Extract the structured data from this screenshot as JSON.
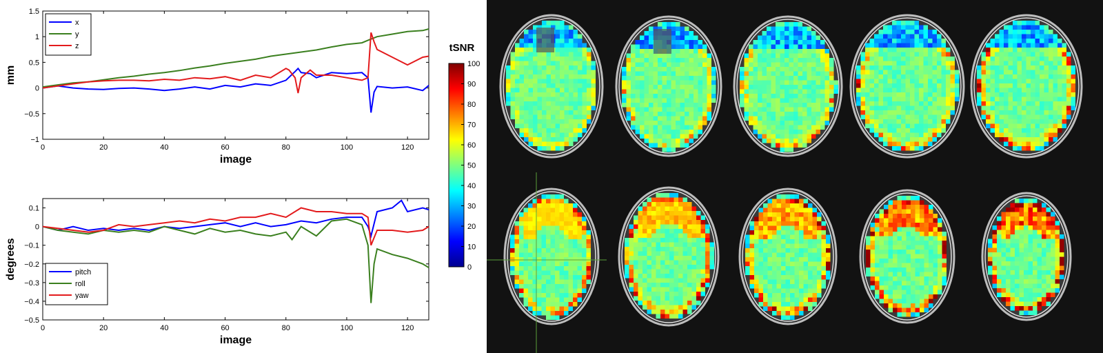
{
  "figure": {
    "colorbar": {
      "label": "tSNR",
      "ticks": [
        "0",
        "10",
        "20",
        "30",
        "40",
        "50",
        "60",
        "70",
        "80",
        "90",
        "100"
      ]
    },
    "brain_panel": {
      "slice_count": 10,
      "rows": 2,
      "background_color": "#121212",
      "colormap": "jet",
      "tsnr_range": [
        0,
        100
      ]
    }
  },
  "chart_data": [
    {
      "type": "line",
      "xlabel": "image",
      "ylabel": "mm",
      "xlim": [
        0,
        127
      ],
      "ylim": [
        -1,
        1.5
      ],
      "xticks": [
        "0",
        "20",
        "40",
        "60",
        "80",
        "100",
        "120"
      ],
      "yticks": [
        "−1",
        "−0.5",
        "0",
        "0.5",
        "1",
        "1.5"
      ],
      "legend_position": "top-left",
      "series": [
        {
          "name": "x",
          "color": "#0000ff",
          "x": [
            0,
            5,
            10,
            15,
            20,
            25,
            30,
            35,
            40,
            45,
            50,
            55,
            60,
            65,
            70,
            75,
            80,
            83,
            84,
            85,
            88,
            90,
            95,
            100,
            105,
            107,
            108,
            109,
            110,
            115,
            120,
            125,
            127
          ],
          "y": [
            0,
            0.04,
            0,
            -0.02,
            -0.03,
            -0.01,
            0,
            -0.02,
            -0.05,
            -0.02,
            0.02,
            -0.02,
            0.05,
            0.02,
            0.08,
            0.05,
            0.15,
            0.32,
            0.38,
            0.3,
            0.28,
            0.2,
            0.3,
            0.28,
            0.3,
            0.2,
            -0.48,
            -0.08,
            0.03,
            0,
            0.02,
            -0.05,
            0.05
          ]
        },
        {
          "name": "y",
          "color": "#3a7f1e",
          "x": [
            0,
            5,
            10,
            15,
            20,
            25,
            30,
            35,
            40,
            45,
            50,
            55,
            60,
            65,
            70,
            75,
            80,
            85,
            90,
            95,
            100,
            105,
            107,
            110,
            115,
            120,
            125,
            127
          ],
          "y": [
            0.02,
            0.06,
            0.1,
            0.12,
            0.16,
            0.2,
            0.23,
            0.27,
            0.3,
            0.34,
            0.39,
            0.43,
            0.48,
            0.52,
            0.56,
            0.62,
            0.66,
            0.7,
            0.74,
            0.8,
            0.85,
            0.88,
            0.93,
            1.0,
            1.05,
            1.1,
            1.12,
            1.15
          ]
        },
        {
          "name": "z",
          "color": "#e31a1c",
          "x": [
            0,
            5,
            10,
            15,
            20,
            25,
            30,
            35,
            40,
            45,
            50,
            55,
            60,
            65,
            70,
            75,
            80,
            81,
            83,
            84,
            85,
            88,
            90,
            95,
            100,
            105,
            107,
            108,
            109,
            110,
            115,
            120,
            125,
            127
          ],
          "y": [
            0,
            0.04,
            0.08,
            0.12,
            0.14,
            0.15,
            0.15,
            0.14,
            0.17,
            0.15,
            0.2,
            0.18,
            0.22,
            0.15,
            0.25,
            0.2,
            0.38,
            0.35,
            0.2,
            -0.1,
            0.2,
            0.35,
            0.25,
            0.25,
            0.2,
            0.15,
            0.2,
            1.08,
            0.9,
            0.75,
            0.6,
            0.45,
            0.6,
            0.62
          ]
        }
      ]
    },
    {
      "type": "line",
      "xlabel": "image",
      "ylabel": "degrees",
      "xlim": [
        0,
        127
      ],
      "ylim": [
        -0.5,
        0.15
      ],
      "xticks": [
        "0",
        "20",
        "40",
        "60",
        "80",
        "100",
        "120"
      ],
      "yticks": [
        "−0.5",
        "−0.4",
        "−0.3",
        "−0.2",
        "−0.1",
        "0",
        "0.1"
      ],
      "legend_position": "bottom-left",
      "series": [
        {
          "name": "pitch",
          "color": "#0000ff",
          "x": [
            0,
            5,
            10,
            15,
            20,
            25,
            30,
            35,
            40,
            45,
            50,
            55,
            60,
            65,
            70,
            75,
            80,
            85,
            90,
            95,
            100,
            105,
            107,
            108,
            110,
            115,
            118,
            120,
            125,
            127
          ],
          "y": [
            0,
            -0.02,
            0,
            -0.02,
            -0.01,
            -0.02,
            -0.01,
            -0.02,
            0,
            -0.01,
            0,
            0.01,
            0.02,
            0,
            0.02,
            0,
            0.01,
            0.03,
            0.02,
            0.04,
            0.05,
            0.05,
            0,
            -0.05,
            0.08,
            0.1,
            0.14,
            0.08,
            0.1,
            0.09
          ]
        },
        {
          "name": "roll",
          "color": "#3a7f1e",
          "x": [
            0,
            5,
            10,
            15,
            20,
            25,
            30,
            35,
            40,
            45,
            50,
            55,
            60,
            65,
            70,
            75,
            80,
            82,
            85,
            90,
            95,
            100,
            105,
            107,
            108,
            109,
            110,
            115,
            120,
            125,
            127
          ],
          "y": [
            0,
            -0.02,
            -0.03,
            -0.04,
            -0.02,
            -0.03,
            -0.02,
            -0.03,
            0,
            -0.02,
            -0.04,
            -0.01,
            -0.03,
            -0.02,
            -0.04,
            -0.05,
            -0.03,
            -0.07,
            0,
            -0.05,
            0.03,
            0.04,
            0.01,
            -0.1,
            -0.41,
            -0.2,
            -0.12,
            -0.15,
            -0.17,
            -0.2,
            -0.22
          ]
        },
        {
          "name": "yaw",
          "color": "#e31a1c",
          "x": [
            0,
            5,
            10,
            15,
            20,
            25,
            30,
            35,
            40,
            45,
            50,
            55,
            60,
            65,
            70,
            75,
            80,
            85,
            90,
            95,
            100,
            105,
            107,
            108,
            110,
            115,
            120,
            125,
            127
          ],
          "y": [
            0,
            -0.01,
            -0.02,
            -0.03,
            -0.02,
            0.01,
            0,
            0.01,
            0.02,
            0.03,
            0.02,
            0.04,
            0.03,
            0.05,
            0.05,
            0.07,
            0.05,
            0.1,
            0.08,
            0.08,
            0.07,
            0.07,
            0.05,
            -0.1,
            -0.02,
            -0.02,
            -0.03,
            -0.02,
            0
          ]
        }
      ]
    }
  ]
}
